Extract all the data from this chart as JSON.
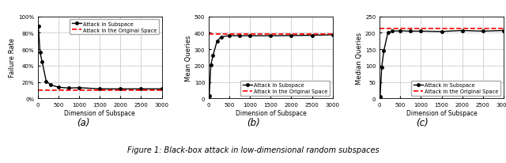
{
  "subspace_dims": [
    10,
    50,
    100,
    200,
    300,
    500,
    750,
    1000,
    1500,
    2000,
    2500,
    3000
  ],
  "failure_rate_subspace": [
    0.88,
    0.56,
    0.45,
    0.21,
    0.165,
    0.135,
    0.125,
    0.13,
    0.115,
    0.115,
    0.115,
    0.115
  ],
  "failure_rate_original": 0.1,
  "mean_queries_subspace": [
    15,
    205,
    260,
    350,
    375,
    383,
    382,
    382,
    382,
    383,
    385,
    388
  ],
  "mean_queries_original": 393,
  "median_queries_subspace": [
    5,
    95,
    145,
    200,
    205,
    206,
    205,
    205,
    204,
    207,
    205,
    207
  ],
  "median_queries_original": 213,
  "xlabel": "Dimension of Subspace",
  "ylabel_a": "Failure Rate",
  "ylabel_b": "Mean Queries",
  "ylabel_c": "Median Queries",
  "label_subspace": "Attack in Subspace",
  "label_original": "Attack in the Original Space",
  "caption": "Figure 1: Black-box attack in low-dimensional random subspaces",
  "subcaptions": [
    "(a)",
    "(b)",
    "(c)"
  ],
  "color_subspace": "#000000",
  "color_original": "#ff0000",
  "failure_ylim": [
    0.0,
    1.0
  ],
  "failure_yticks": [
    0.0,
    0.2,
    0.4,
    0.6,
    0.8,
    1.0
  ],
  "mean_ylim": [
    0,
    500
  ],
  "mean_yticks": [
    0,
    100,
    200,
    300,
    400,
    500
  ],
  "median_ylim": [
    0,
    250
  ],
  "median_yticks": [
    0,
    50,
    100,
    150,
    200,
    250
  ],
  "xticks": [
    0,
    500,
    1000,
    1500,
    2000,
    2500,
    3000
  ],
  "xlim": [
    0,
    3000
  ]
}
